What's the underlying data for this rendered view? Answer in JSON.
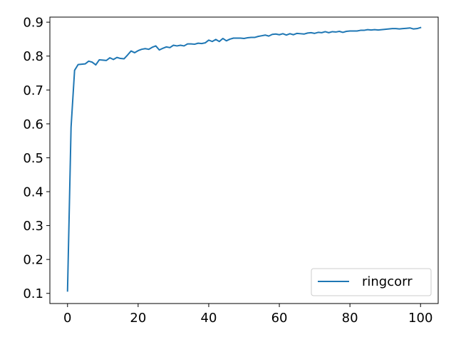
{
  "chart_data": {
    "type": "line",
    "title": "",
    "xlabel": "",
    "ylabel": "",
    "xlim": [
      -5,
      105
    ],
    "ylim": [
      0.07,
      0.915
    ],
    "x_ticks": [
      0,
      20,
      40,
      60,
      80,
      100
    ],
    "y_ticks": [
      0.1,
      0.2,
      0.3,
      0.4,
      0.5,
      0.6,
      0.7,
      0.8,
      0.9
    ],
    "y_tick_labels": [
      "0.1",
      "0.2",
      "0.3",
      "0.4",
      "0.5",
      "0.6",
      "0.7",
      "0.8",
      "0.9"
    ],
    "grid": false,
    "legend_position": "bottom-right",
    "series": [
      {
        "name": "ringcorr",
        "color": "#1f77b4",
        "x": [
          0,
          1,
          2,
          3,
          4,
          5,
          6,
          7,
          8,
          9,
          10,
          11,
          12,
          13,
          14,
          15,
          16,
          17,
          18,
          19,
          20,
          21,
          22,
          23,
          24,
          25,
          26,
          27,
          28,
          29,
          30,
          31,
          32,
          33,
          34,
          35,
          36,
          37,
          38,
          39,
          40,
          41,
          42,
          43,
          44,
          45,
          46,
          47,
          48,
          49,
          50,
          51,
          52,
          53,
          54,
          55,
          56,
          57,
          58,
          59,
          60,
          61,
          62,
          63,
          64,
          65,
          66,
          67,
          68,
          69,
          70,
          71,
          72,
          73,
          74,
          75,
          76,
          77,
          78,
          79,
          80,
          81,
          82,
          83,
          84,
          85,
          86,
          87,
          88,
          89,
          90,
          91,
          92,
          93,
          94,
          95,
          96,
          97,
          98,
          99,
          100
        ],
        "values": [
          0.107,
          0.59,
          0.758,
          0.775,
          0.776,
          0.777,
          0.785,
          0.782,
          0.774,
          0.789,
          0.788,
          0.787,
          0.795,
          0.79,
          0.796,
          0.793,
          0.792,
          0.803,
          0.815,
          0.81,
          0.816,
          0.82,
          0.822,
          0.82,
          0.826,
          0.83,
          0.818,
          0.823,
          0.827,
          0.825,
          0.832,
          0.83,
          0.832,
          0.83,
          0.836,
          0.836,
          0.835,
          0.838,
          0.837,
          0.839,
          0.847,
          0.843,
          0.849,
          0.843,
          0.852,
          0.845,
          0.85,
          0.853,
          0.853,
          0.853,
          0.852,
          0.854,
          0.855,
          0.855,
          0.858,
          0.86,
          0.862,
          0.859,
          0.864,
          0.865,
          0.863,
          0.866,
          0.862,
          0.866,
          0.863,
          0.867,
          0.866,
          0.865,
          0.868,
          0.869,
          0.867,
          0.87,
          0.869,
          0.872,
          0.869,
          0.872,
          0.871,
          0.873,
          0.87,
          0.873,
          0.874,
          0.874,
          0.874,
          0.876,
          0.876,
          0.878,
          0.877,
          0.878,
          0.877,
          0.878,
          0.879,
          0.88,
          0.881,
          0.881,
          0.88,
          0.881,
          0.882,
          0.883,
          0.88,
          0.881,
          0.884
        ]
      }
    ]
  }
}
